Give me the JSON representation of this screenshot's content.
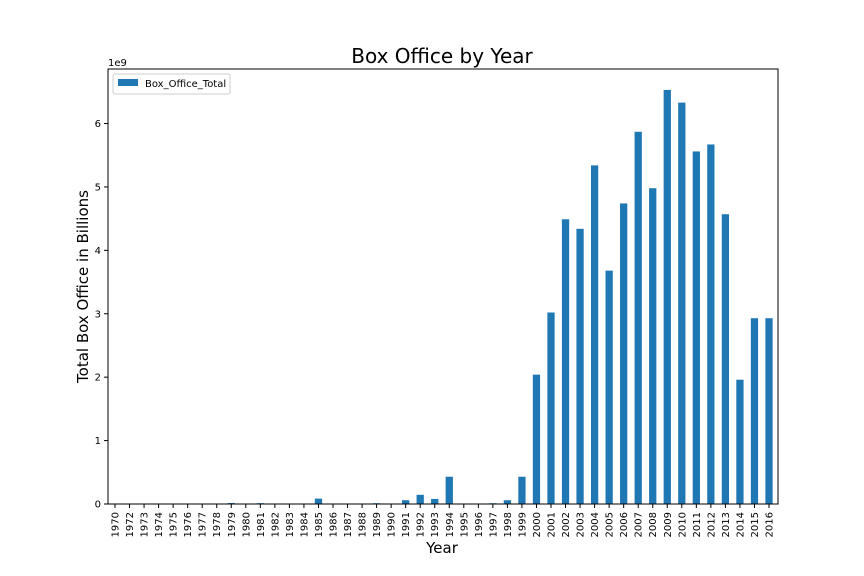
{
  "chart_data": {
    "type": "bar",
    "title": "Box Office by Year",
    "xlabel": "Year",
    "ylabel": "Total Box Office in Billions",
    "y_offset_label": "1e9",
    "ylim": [
      0,
      6.86
    ],
    "yticks": [
      "0",
      "1",
      "2",
      "3",
      "4",
      "5",
      "6"
    ],
    "legend_position": "upper-left",
    "grid": false,
    "bar_color": "#1f77b4",
    "categories": [
      "1970",
      "1972",
      "1973",
      "1974",
      "1975",
      "1976",
      "1977",
      "1978",
      "1979",
      "1980",
      "1981",
      "1982",
      "1983",
      "1984",
      "1985",
      "1986",
      "1987",
      "1988",
      "1989",
      "1990",
      "1991",
      "1992",
      "1993",
      "1994",
      "1995",
      "1996",
      "1997",
      "1998",
      "1999",
      "2000",
      "2001",
      "2002",
      "2003",
      "2004",
      "2005",
      "2006",
      "2007",
      "2008",
      "2009",
      "2010",
      "2011",
      "2012",
      "2013",
      "2014",
      "2015",
      "2016"
    ],
    "series": [
      {
        "name": "Box_Office_Total",
        "values": [
          0.003,
          0.001,
          0.001,
          0.001,
          0.001,
          0.001,
          0.001,
          0.002,
          0.015,
          0.002,
          0.013,
          0.001,
          0.002,
          0.002,
          0.085,
          0.001,
          0.001,
          0.001,
          0.012,
          0.003,
          0.06,
          0.145,
          0.08,
          0.43,
          0.001,
          0.001,
          0.012,
          0.06,
          0.43,
          2.04,
          3.02,
          4.49,
          4.34,
          5.34,
          3.68,
          4.74,
          5.87,
          4.98,
          6.53,
          6.33,
          5.56,
          5.67,
          4.57,
          1.96,
          2.93,
          2.93
        ]
      }
    ]
  }
}
